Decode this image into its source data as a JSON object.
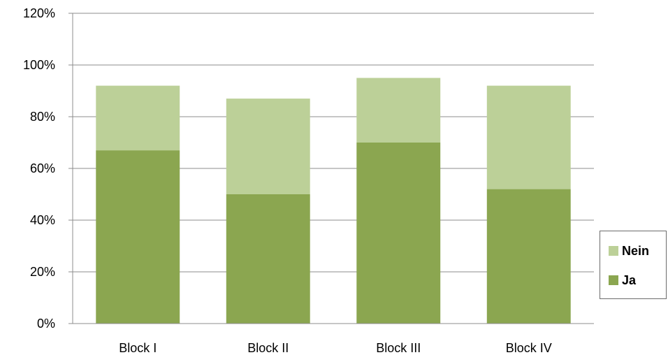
{
  "chart_data": {
    "type": "bar",
    "stacked": true,
    "categories": [
      "Block I",
      "Block II",
      "Block III",
      "Block IV"
    ],
    "series": [
      {
        "name": "Ja",
        "values": [
          67,
          50,
          70,
          52
        ],
        "color": "#8ba650"
      },
      {
        "name": "Nein",
        "values": [
          25,
          37,
          25,
          40
        ],
        "color": "#bcd098"
      }
    ],
    "ylim": [
      0,
      120
    ],
    "yticks": [
      0,
      20,
      40,
      60,
      80,
      100,
      120
    ],
    "ytick_labels": [
      "0%",
      "20%",
      "40%",
      "60%",
      "80%",
      "100%",
      "120%"
    ],
    "grid": true,
    "legend_position": "right",
    "legend_order": [
      "Nein",
      "Ja"
    ],
    "title": "",
    "xlabel": "",
    "ylabel": ""
  }
}
